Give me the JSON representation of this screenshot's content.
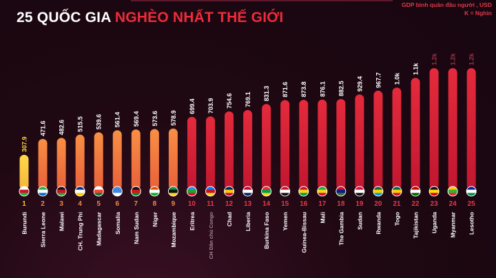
{
  "title": {
    "part1": "25 QUỐC GIA",
    "part2": "NGHÈO NHẤT THẾ GIỚI"
  },
  "note": {
    "line1": "GDP bình quân đầu người , USD",
    "line2": "K = Nghìn"
  },
  "colors": {
    "background": "#1f0812",
    "title_accent": "#ee2b3a",
    "bar_yellow": "#ffcc3a",
    "bar_orange": "#f5873e",
    "bar_red": "#d81f35",
    "rank_yellow": "#f7c52e",
    "rank_orange": "#f08a4a",
    "rank_red": "#e8384a"
  },
  "chart_data": {
    "type": "bar",
    "title": "25 QUỐC GIA NGHÈO NHẤT THẾ GIỚI",
    "ylabel": "GDP bình quân đầu người , USD",
    "categories": [
      "Burundi",
      "Sierra Leone",
      "Malawi",
      "CH. Trung Phi",
      "Madagascar",
      "Somalia",
      "Nam Sudan",
      "Niger",
      "Mozambique",
      "Eritrea",
      "CH Dân chủ Congo",
      "Chad",
      "Liberia",
      "Burkina Faso",
      "Yemen",
      "Guinea-Bissau",
      "Mali",
      "The Gambia",
      "Sudan",
      "Rwanda",
      "Togo",
      "Tajikistan",
      "Uganda",
      "Myanmar",
      "Lesotho"
    ],
    "ranks": [
      "1",
      "2",
      "3",
      "4",
      "5",
      "6",
      "7",
      "8",
      "9",
      "10",
      "11",
      "12",
      "13",
      "14",
      "15",
      "16",
      "17",
      "18",
      "19",
      "20",
      "21",
      "22",
      "23",
      "24",
      "25"
    ],
    "values": [
      307.9,
      471.6,
      482.6,
      515.5,
      539.6,
      561.4,
      569.4,
      573.6,
      578.9,
      699.4,
      703.9,
      754.6,
      769.1,
      831.3,
      871.6,
      873.8,
      876.1,
      882.5,
      929.4,
      967.7,
      1000,
      1100,
      1200,
      1200,
      1200
    ],
    "value_labels": [
      "307.9",
      "471.6",
      "482.6",
      "515.5",
      "539.6",
      "561.4",
      "569.4",
      "573.6",
      "578.9",
      "699.4",
      "703.9",
      "754.6",
      "769.1",
      "831.3",
      "871.6",
      "873.8",
      "876.1",
      "882.5",
      "929.4",
      "967.7",
      "1.0k",
      "1.1k",
      "1.2k",
      "1.2k",
      "1.2k"
    ],
    "flag_colors": [
      [
        "#ffffff",
        "#d21034",
        "#1eb53a"
      ],
      [
        "#1eb53a",
        "#ffffff",
        "#0072c6"
      ],
      [
        "#111111",
        "#ce1126",
        "#339e35"
      ],
      [
        "#003082",
        "#ffffff",
        "#ffce00"
      ],
      [
        "#ffffff",
        "#fc3d32",
        "#007e3a"
      ],
      [
        "#4189dd",
        "#4189dd",
        "#ffffff"
      ],
      [
        "#111111",
        "#da121a",
        "#078930"
      ],
      [
        "#e05206",
        "#ffffff",
        "#0db02b"
      ],
      [
        "#009a44",
        "#111111",
        "#fcd116"
      ],
      [
        "#4189dd",
        "#12ad2b",
        "#ea0437"
      ],
      [
        "#007fff",
        "#ce1021",
        "#f7d618"
      ],
      [
        "#002664",
        "#fecb00",
        "#c60c30"
      ],
      [
        "#bf0a30",
        "#ffffff",
        "#002868"
      ],
      [
        "#ef2b2d",
        "#009e49",
        "#fcd116"
      ],
      [
        "#ce1126",
        "#ffffff",
        "#111111"
      ],
      [
        "#ce1126",
        "#fcd116",
        "#009e49"
      ],
      [
        "#14b53a",
        "#fcd116",
        "#ce1126"
      ],
      [
        "#ce1126",
        "#0c1c8c",
        "#3a7728"
      ],
      [
        "#d21034",
        "#ffffff",
        "#111111"
      ],
      [
        "#20603d",
        "#fad201",
        "#00a1de"
      ],
      [
        "#006a4e",
        "#ffce00",
        "#d21034"
      ],
      [
        "#cc0000",
        "#ffffff",
        "#006600"
      ],
      [
        "#111111",
        "#fcdc04",
        "#d90000"
      ],
      [
        "#fecb00",
        "#34b233",
        "#ea2839"
      ],
      [
        "#00209f",
        "#ffffff",
        "#009543"
      ]
    ]
  }
}
